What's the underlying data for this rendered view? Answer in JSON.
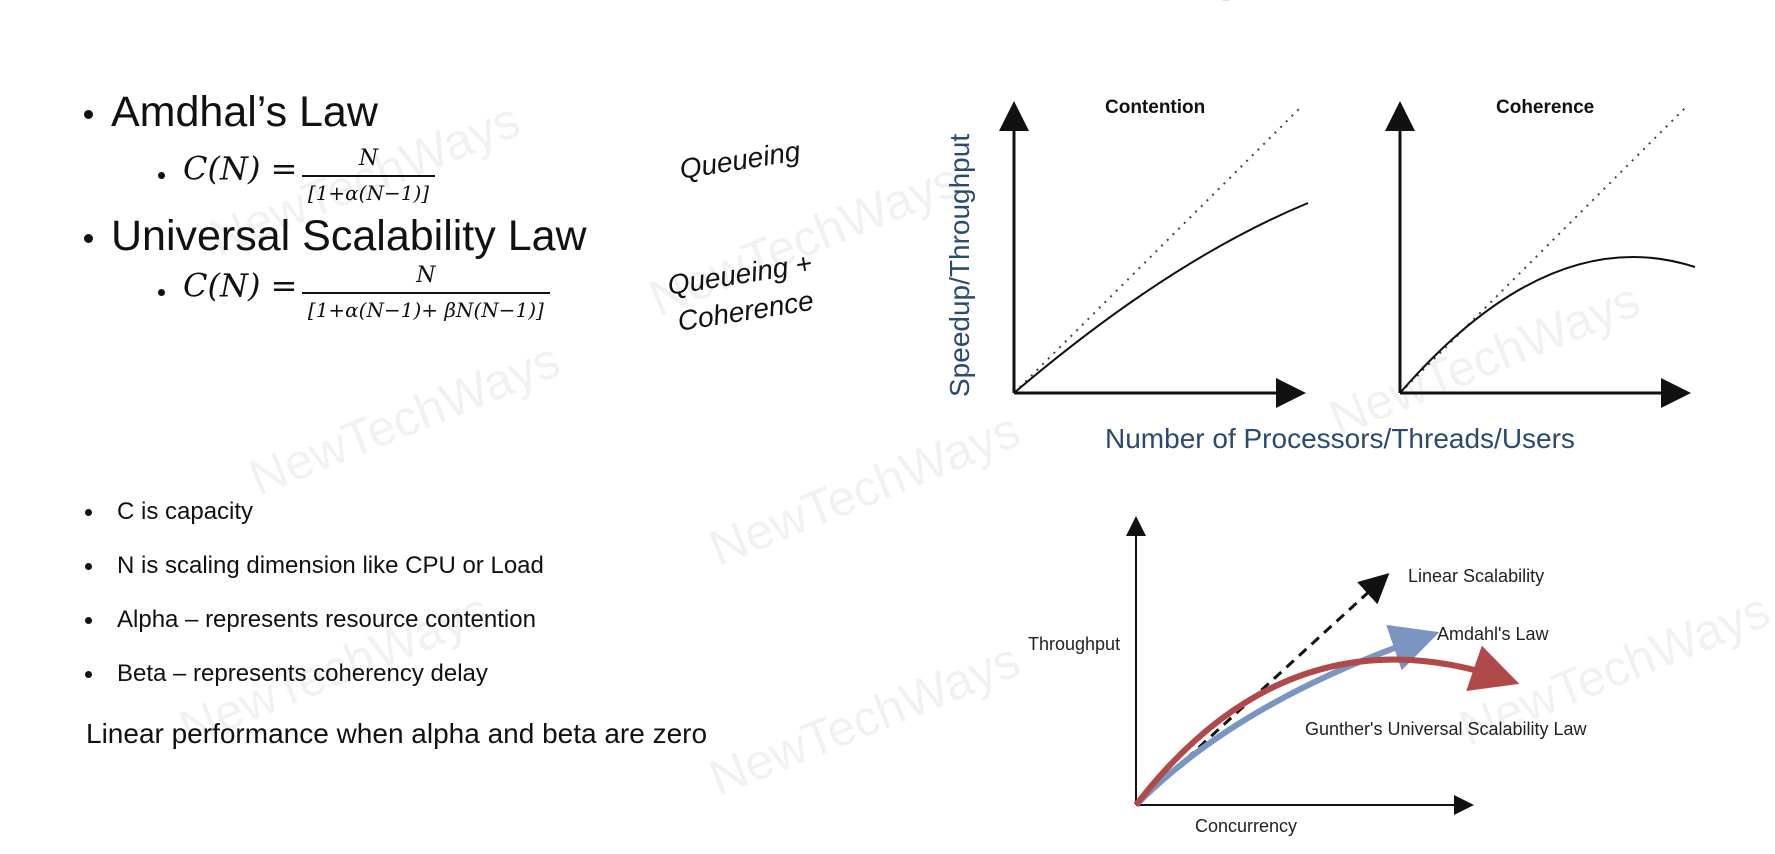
{
  "left": {
    "laws": [
      {
        "name": "Amdhal’s Law",
        "formula_lhs": "C(N) =",
        "formula_num": "N",
        "formula_den": "[1+α(N−1)]",
        "annotation": "Queueing"
      },
      {
        "name": "Universal Scalability Law",
        "formula_lhs": "C(N) =",
        "formula_num": "N",
        "formula_den": "[1+α(N−1)+ βN(N−1)]",
        "annotation_line1": "Queueing +",
        "annotation_line2": "Coherence"
      }
    ],
    "definitions": [
      "C is capacity",
      "N is scaling dimension like CPU or Load",
      "Alpha – represents resource contention",
      "Beta – represents coherency delay"
    ],
    "conclusion": "Linear performance when alpha and beta are zero"
  },
  "top_charts": {
    "y_axis_label": "Speedup/Throughput",
    "x_axis_label": "Number of Processors/Threads/Users",
    "panels": [
      {
        "title": "Contention"
      },
      {
        "title": "Coherence"
      }
    ],
    "colors": {
      "axis_label": "#2b4a6f"
    }
  },
  "bottom_chart": {
    "y_axis_label": "Throughput",
    "x_axis_label": "Concurrency",
    "series": [
      {
        "name": "Linear Scalability",
        "style": "dashed",
        "color": "#111111"
      },
      {
        "name": "Amdahl's Law",
        "color": "#7a96c0"
      },
      {
        "name": "Gunther's Universal Scalability Law",
        "color": "#b04a4a"
      }
    ]
  },
  "watermark": "NewTechWays",
  "colors": {
    "title_accent": "#e05a6e"
  }
}
